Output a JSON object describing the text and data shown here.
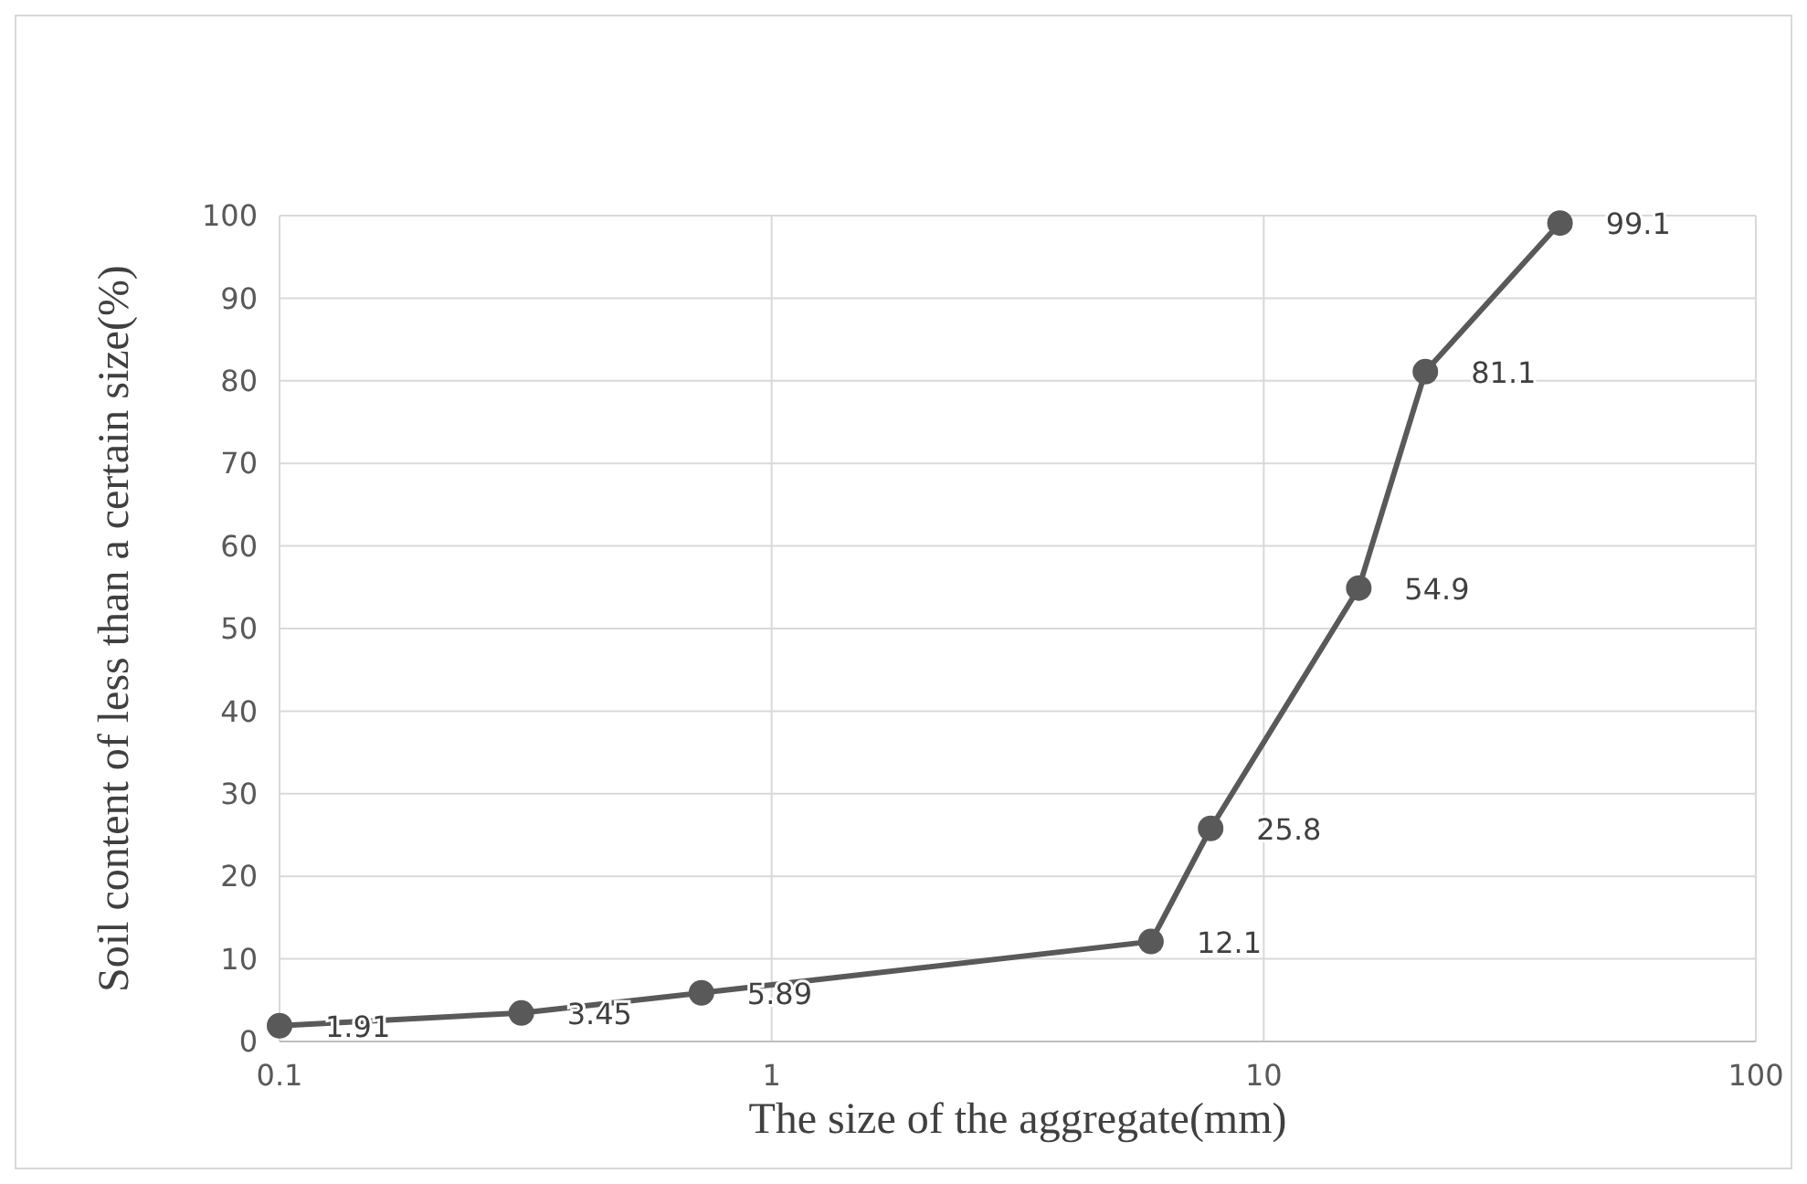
{
  "chart_data": {
    "type": "line",
    "xlabel": "The size of the aggregate(mm)",
    "ylabel": "Soil content of less than a certain size(%)",
    "log": "x",
    "x": [
      0.1,
      0.31,
      0.72,
      5.9,
      7.8,
      15.6,
      21.3,
      40
    ],
    "series": [
      {
        "color": "#595959",
        "values": [
          1.91,
          3.45,
          5.89,
          12.1,
          25.8,
          54.9,
          81.1,
          99.1
        ]
      }
    ],
    "xlim": [
      0.1,
      100
    ],
    "xticks": [
      0.1,
      1,
      10,
      100
    ],
    "ylim": [
      0,
      100
    ],
    "yticks": [
      0,
      10,
      20,
      30,
      40,
      50,
      60,
      70,
      80,
      90,
      100
    ],
    "grid": true,
    "marker": "circle",
    "line_style": "solid",
    "data_labels": true
  }
}
